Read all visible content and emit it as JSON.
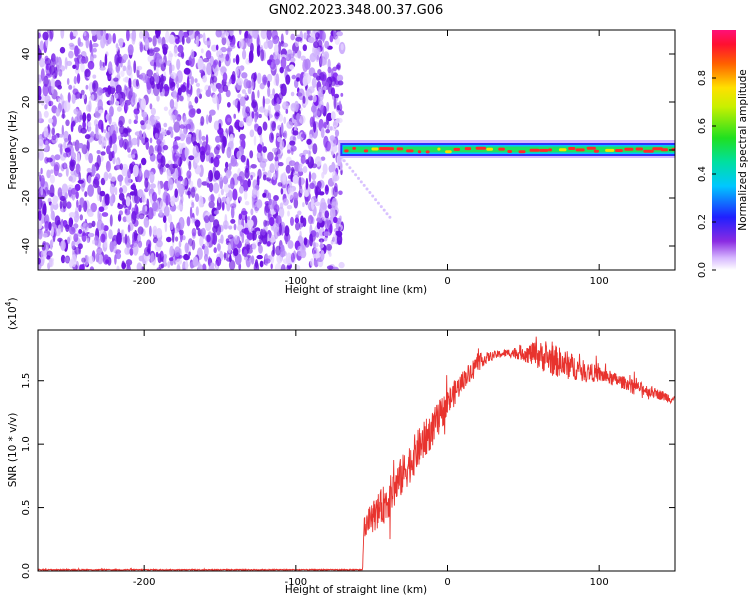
{
  "title": "GN02.2023.348.00.37.G06",
  "colors": {
    "snr_line": "#e8332e",
    "spectrum_noise": "#7b1cf0",
    "axis": "#000000"
  },
  "colorbar": {
    "label": "Normalized spectral amplitude",
    "ticks": [
      "0.0",
      "0.2",
      "0.4",
      "0.6",
      "0.8"
    ],
    "tick_values": [
      0.0,
      0.2,
      0.4,
      0.6,
      0.8
    ],
    "range": [
      0,
      1
    ],
    "colormap": "rainbow (white-purple-blue-cyan-green-yellow-red-magenta)"
  },
  "chart_data": [
    {
      "type": "heatmap",
      "title": "GN02.2023.348.00.37.G06",
      "xlabel": "Height of straight line (km)",
      "ylabel": "Frequency (Hz)",
      "xlim": [
        -270,
        150
      ],
      "ylim": [
        -50,
        50
      ],
      "x_ticks": [
        -200,
        -100,
        0,
        100
      ],
      "x_tick_labels": [
        "-200",
        "-100",
        "0",
        "100"
      ],
      "y_ticks": [
        -40,
        -20,
        0,
        20,
        40
      ],
      "y_tick_labels": [
        "-40",
        "-20",
        "0",
        "20",
        "40"
      ],
      "noise_region_x": [
        -270,
        -72
      ],
      "signal_band": {
        "x_start": -72,
        "x_end": 150,
        "frequency": 0
      },
      "grid": false
    },
    {
      "type": "line",
      "xlabel": "Height of straight line (km)",
      "ylabel": "SNR (10 * v/v)",
      "y_multiplier_label": "(x10",
      "y_multiplier_exp": "4",
      "xlim": [
        -270,
        150
      ],
      "ylim": [
        0,
        1.9
      ],
      "x_ticks": [
        -200,
        -100,
        0,
        100
      ],
      "x_tick_labels": [
        "-200",
        "-100",
        "0",
        "100"
      ],
      "y_ticks": [
        0.0,
        0.5,
        1.0,
        1.5
      ],
      "y_tick_labels": [
        "0.0",
        "0.5",
        "1.0",
        "1.5"
      ],
      "grid": false,
      "series": [
        {
          "x": [
            -270,
            -250,
            -200,
            -150,
            -100,
            -70,
            -56,
            -55,
            -50,
            -40,
            -30,
            -20,
            -10,
            0,
            10,
            20,
            30,
            40,
            50,
            60,
            70,
            80,
            90,
            100,
            110,
            120,
            130,
            140,
            150
          ],
          "y": [
            0.01,
            0.01,
            0.01,
            0.01,
            0.01,
            0.01,
            0.01,
            0.35,
            0.42,
            0.55,
            0.75,
            0.95,
            1.12,
            1.32,
            1.5,
            1.65,
            1.7,
            1.72,
            1.72,
            1.7,
            1.66,
            1.62,
            1.58,
            1.55,
            1.51,
            1.47,
            1.43,
            1.39,
            1.35
          ],
          "noise": [
            0.005,
            0.005,
            0.005,
            0.005,
            0.005,
            0.005,
            0.005,
            0.1,
            0.15,
            0.2,
            0.2,
            0.2,
            0.18,
            0.15,
            0.1,
            0.08,
            0.04,
            0.04,
            0.08,
            0.14,
            0.16,
            0.14,
            0.1,
            0.08,
            0.07,
            0.06,
            0.06,
            0.05,
            0.05
          ]
        }
      ]
    }
  ]
}
